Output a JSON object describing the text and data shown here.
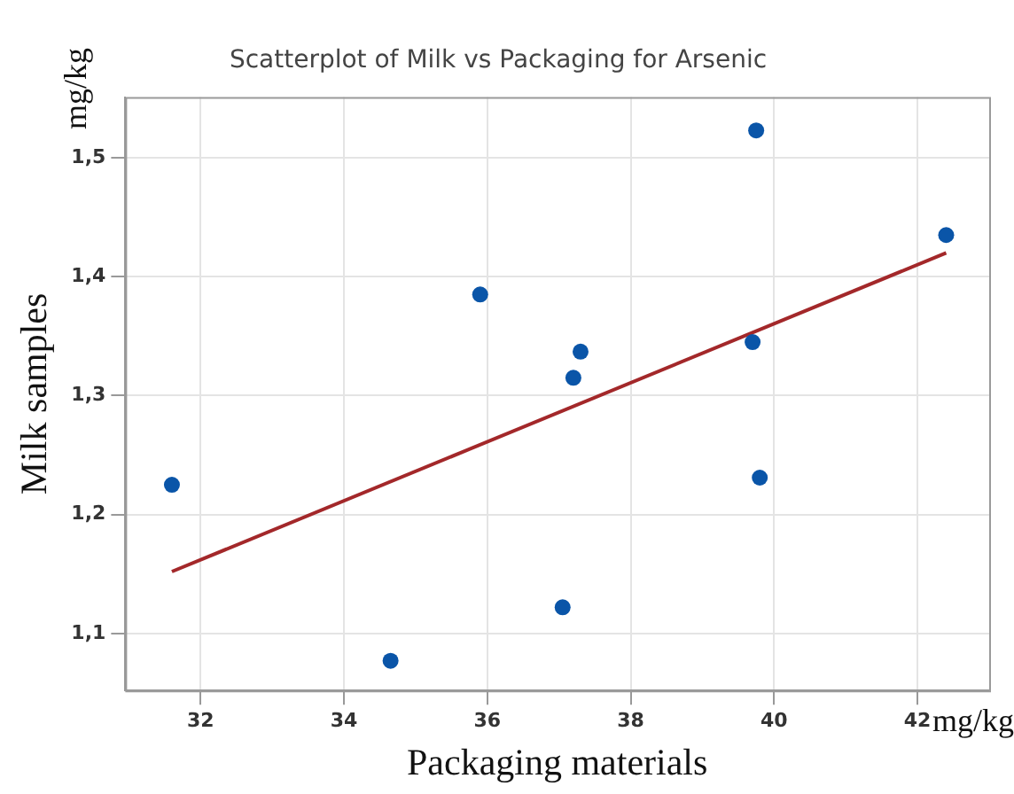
{
  "chart_data": {
    "type": "scatter",
    "title": "Scatterplot of Milk vs Packaging for Arsenic",
    "xlabel": "Packaging materials",
    "ylabel": "Milk samples",
    "annotations": [
      "mg/kg",
      "mg/kg"
    ],
    "xlim": [
      30.95,
      43.0
    ],
    "xticks": [
      32,
      34,
      36,
      38,
      40,
      42
    ],
    "ylim": [
      1.052,
      1.551
    ],
    "yticks": [
      {
        "value": 1.1,
        "label": "1,1"
      },
      {
        "value": 1.2,
        "label": "1,2"
      },
      {
        "value": 1.3,
        "label": "1,3"
      },
      {
        "value": 1.4,
        "label": "1,4"
      },
      {
        "value": 1.5,
        "label": "1,5"
      }
    ],
    "grid": true,
    "legend": false,
    "marker": "circle",
    "series": [
      {
        "type": "scatter",
        "color": "#0a55a8",
        "x": [
          31.6,
          34.65,
          35.9,
          37.05,
          37.2,
          37.3,
          39.7,
          39.75,
          39.8,
          42.4
        ],
        "values": [
          1.225,
          1.077,
          1.385,
          1.122,
          1.315,
          1.337,
          1.345,
          1.523,
          1.231,
          1.435
        ]
      },
      {
        "type": "line",
        "color": "#a3282a",
        "x": [
          31.6,
          42.4
        ],
        "values": [
          1.152,
          1.42
        ],
        "marker": "none",
        "line_style": "solid"
      }
    ]
  }
}
